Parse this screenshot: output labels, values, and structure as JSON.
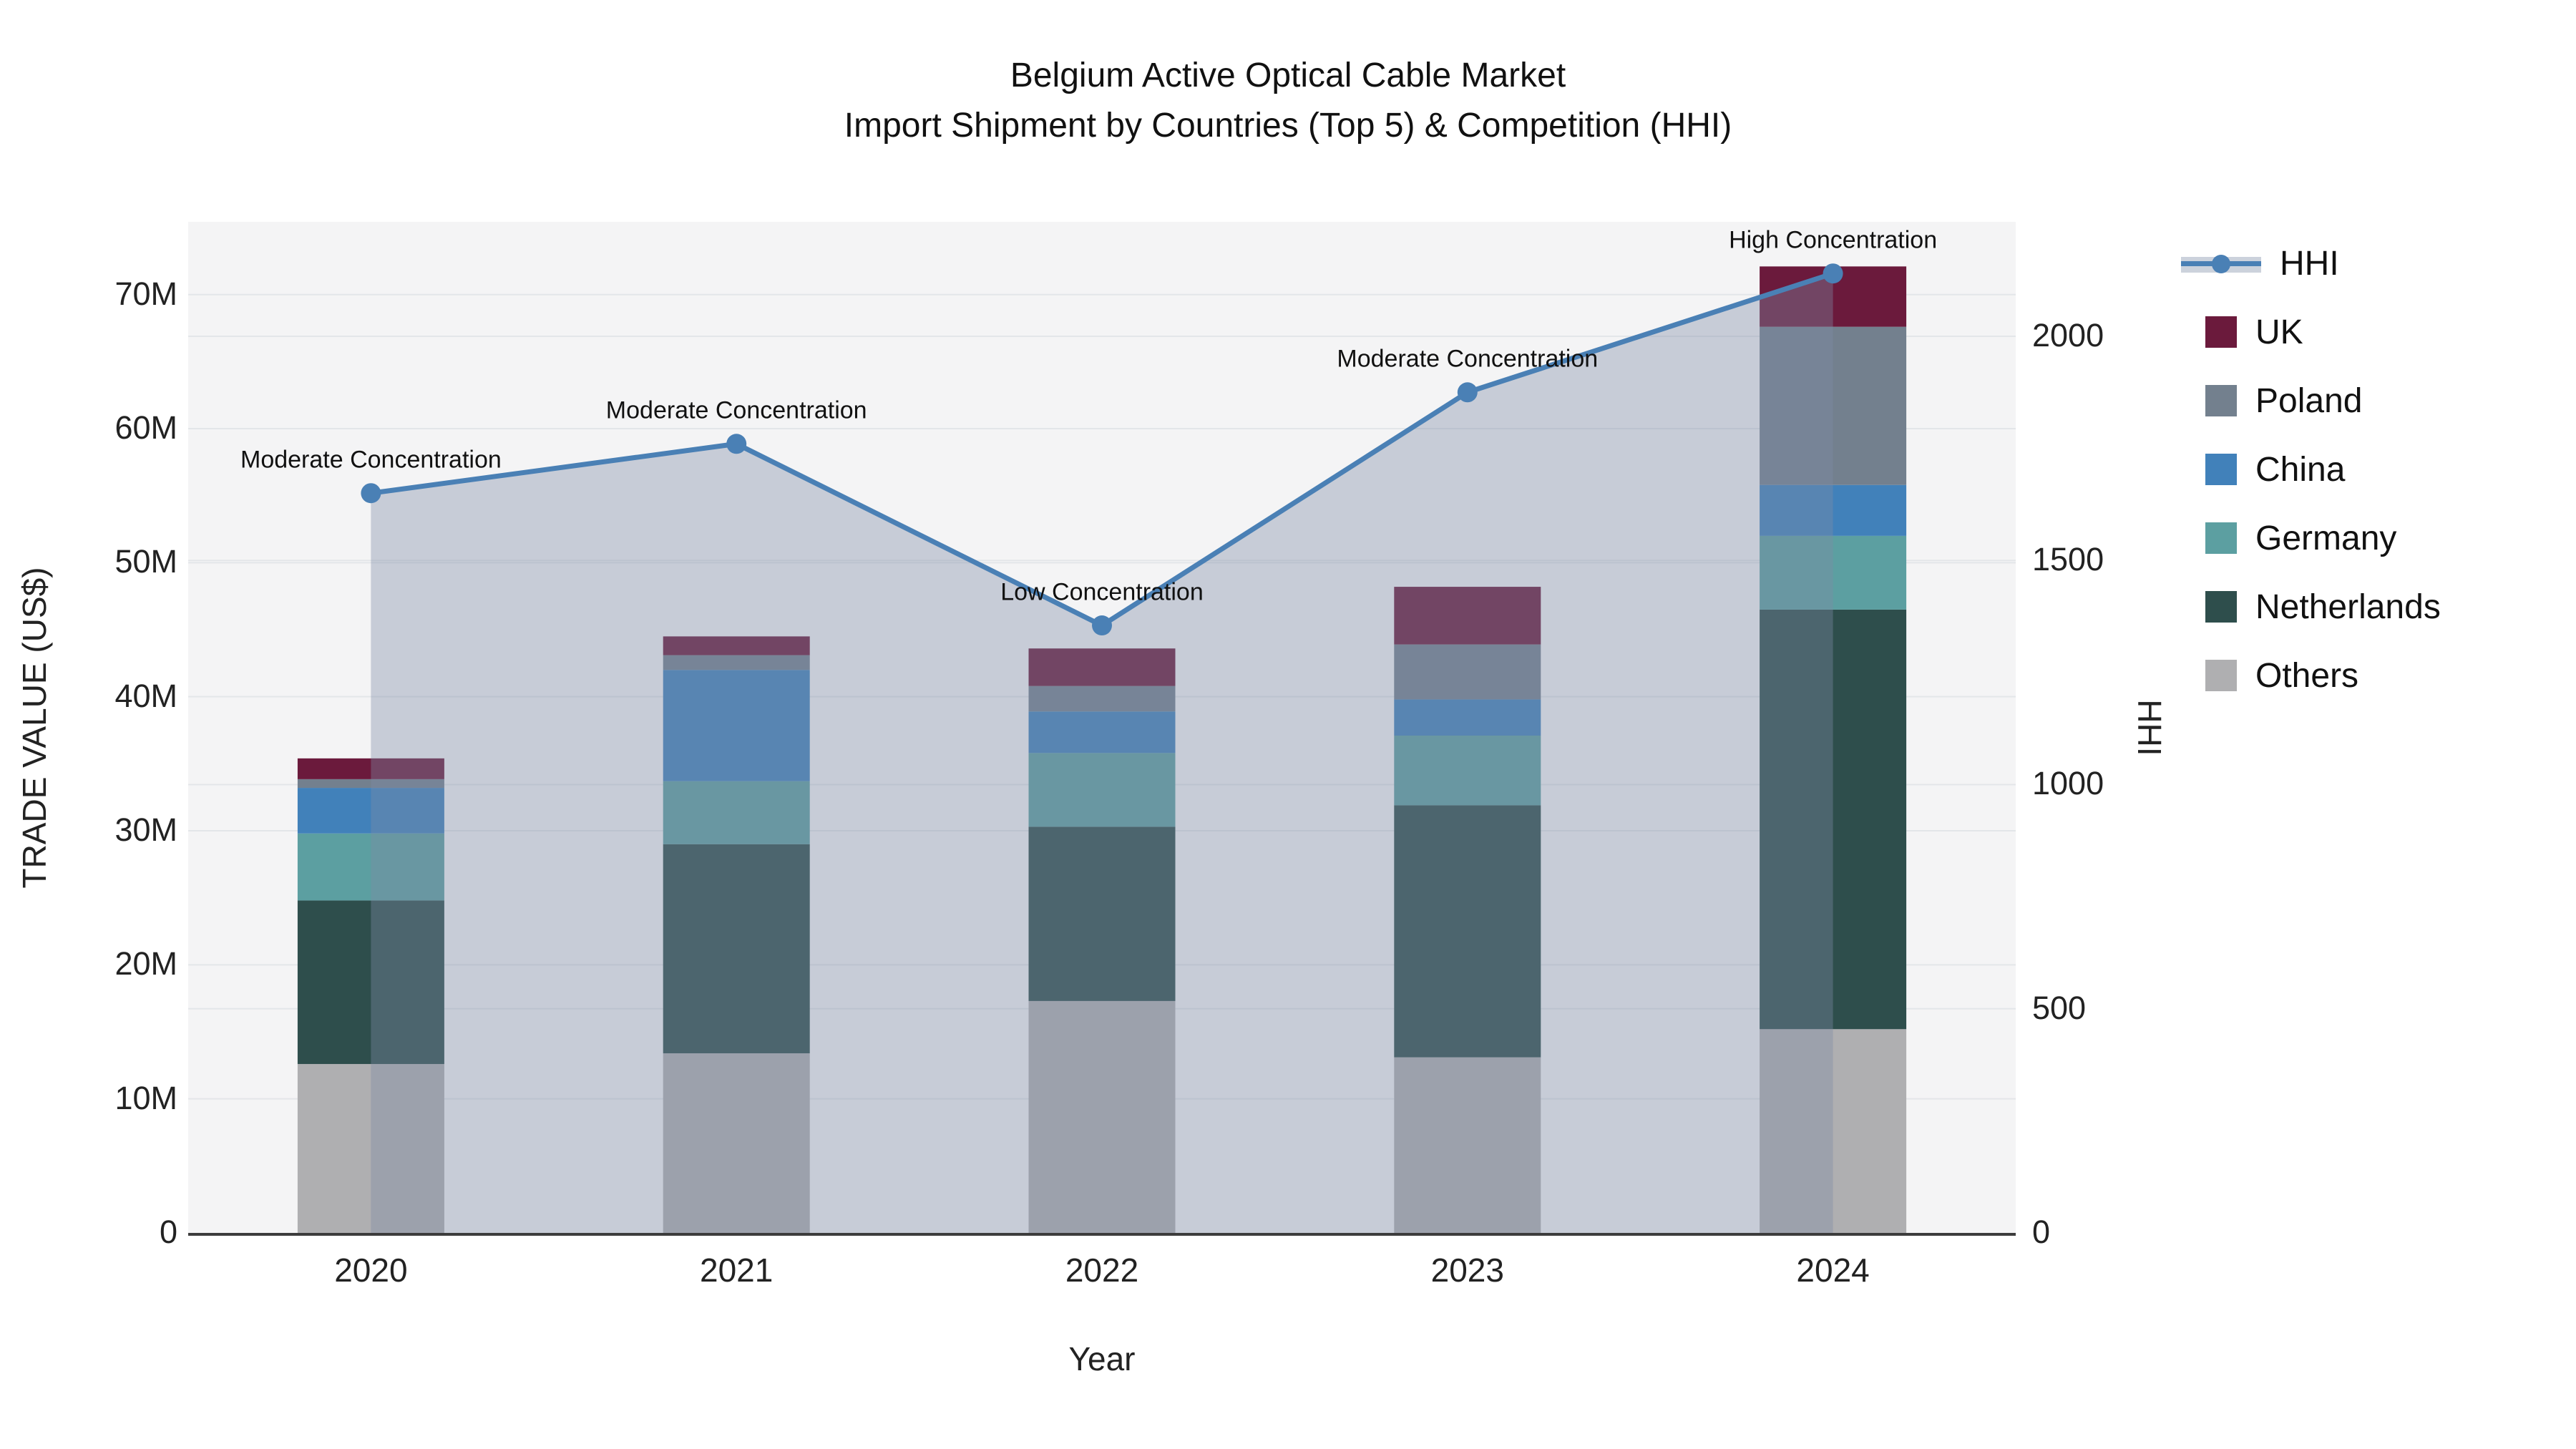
{
  "title": {
    "line1": "Belgium Active Optical Cable Market",
    "line2": "Import Shipment by Countries (Top 5) & Competition (HHI)"
  },
  "axes": {
    "x_label": "Year",
    "y_left_label": "TRADE VALUE (US$)",
    "y_right_label": "HHI",
    "y_left_ticks": [
      {
        "label": "0",
        "value": 0
      },
      {
        "label": "10M",
        "value": 10
      },
      {
        "label": "20M",
        "value": 20
      },
      {
        "label": "30M",
        "value": 30
      },
      {
        "label": "40M",
        "value": 40
      },
      {
        "label": "50M",
        "value": 50
      },
      {
        "label": "60M",
        "value": 60
      },
      {
        "label": "70M",
        "value": 70
      }
    ],
    "y_right_ticks": [
      {
        "label": "0",
        "value": 0
      },
      {
        "label": "500",
        "value": 500
      },
      {
        "label": "1000",
        "value": 1000
      },
      {
        "label": "1500",
        "value": 1500
      },
      {
        "label": "2000",
        "value": 2000
      }
    ]
  },
  "chart_data": {
    "type": "bar+line",
    "categories": [
      "2020",
      "2021",
      "2022",
      "2023",
      "2024"
    ],
    "bar_value_unit": "million US$",
    "stack_order_bottom_to_top": [
      "Others",
      "Netherlands",
      "Germany",
      "China",
      "Poland",
      "UK"
    ],
    "series": [
      {
        "name": "Others",
        "color": "#afafb1",
        "values": [
          12.6,
          13.4,
          17.3,
          13.1,
          15.2
        ]
      },
      {
        "name": "Netherlands",
        "color": "#2e4e4c",
        "values": [
          12.2,
          15.6,
          13.0,
          18.8,
          31.3
        ]
      },
      {
        "name": "Germany",
        "color": "#5c9fa1",
        "values": [
          5.0,
          4.7,
          5.5,
          5.2,
          5.5
        ]
      },
      {
        "name": "China",
        "color": "#4181ba",
        "values": [
          3.4,
          8.3,
          3.1,
          2.7,
          3.8
        ]
      },
      {
        "name": "Poland",
        "color": "#73808e",
        "values": [
          0.65,
          1.1,
          1.9,
          4.1,
          11.8
        ]
      },
      {
        "name": "UK",
        "color": "#6b1a3c",
        "values": [
          1.55,
          1.4,
          2.8,
          4.3,
          4.5
        ]
      }
    ],
    "bar_totals": [
      35.4,
      44.5,
      43.6,
      48.2,
      72.1
    ],
    "line": {
      "name": "HHI",
      "color": "#4a80b5",
      "area_fill": "rgba(125,140,165,0.38)",
      "values": [
        1650,
        1760,
        1355,
        1875,
        2140
      ]
    },
    "annotations": [
      {
        "category": "2020",
        "text": "Moderate Concentration"
      },
      {
        "category": "2021",
        "text": "Moderate Concentration"
      },
      {
        "category": "2022",
        "text": "Low Concentration"
      },
      {
        "category": "2023",
        "text": "Moderate Concentration"
      },
      {
        "category": "2024",
        "text": "High Concentration"
      }
    ],
    "y_left_range": [
      0,
      75.4
    ],
    "y_right_range": [
      0,
      2255
    ],
    "grid": true,
    "legend_position": "right"
  },
  "legend": {
    "items": [
      {
        "label": "HHI",
        "type": "line",
        "color": "#4a80b5"
      },
      {
        "label": "UK",
        "type": "square",
        "color": "#6b1a3c"
      },
      {
        "label": "Poland",
        "type": "square",
        "color": "#73808e"
      },
      {
        "label": "China",
        "type": "square",
        "color": "#4181ba"
      },
      {
        "label": "Germany",
        "type": "square",
        "color": "#5c9fa1"
      },
      {
        "label": "Netherlands",
        "type": "square",
        "color": "#2e4e4c"
      },
      {
        "label": "Others",
        "type": "square",
        "color": "#afafb1"
      }
    ]
  }
}
